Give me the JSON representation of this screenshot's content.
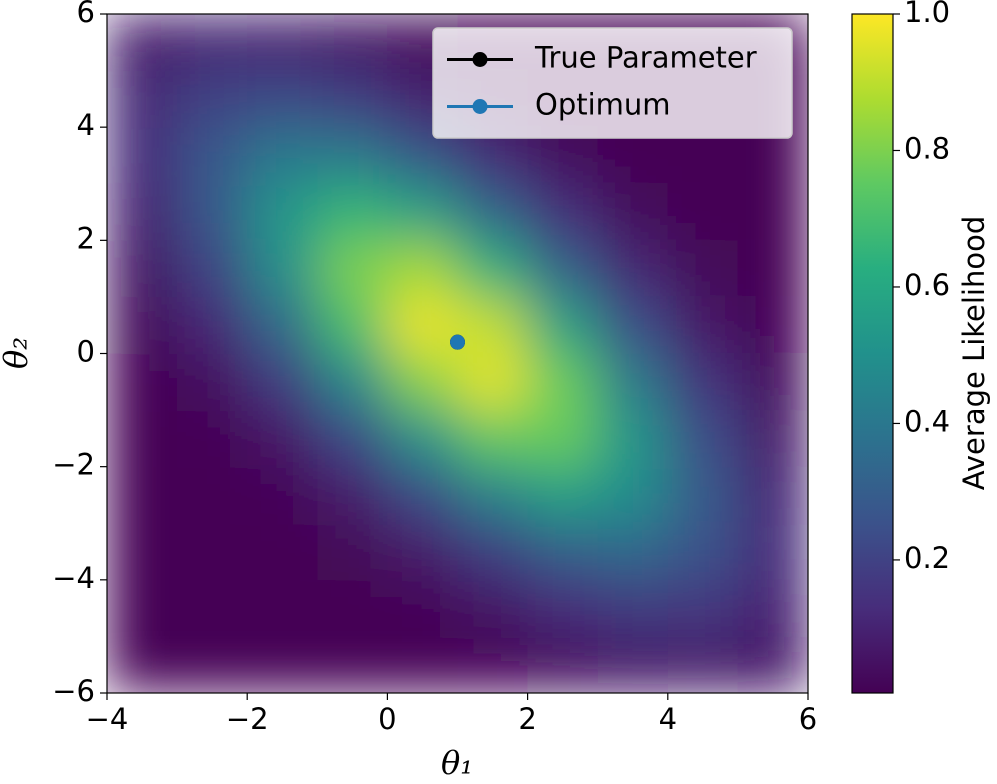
{
  "chart_data": {
    "type": "heatmap",
    "xlabel": "θ₁",
    "ylabel": "θ₂",
    "xlim": [
      -4,
      6
    ],
    "ylim": [
      -6,
      6
    ],
    "xticks": [
      {
        "value": -4,
        "label": "−4"
      },
      {
        "value": -2,
        "label": "−2"
      },
      0,
      2,
      4,
      6
    ],
    "yticks": [
      {
        "value": -6,
        "label": "−6"
      },
      {
        "value": -4,
        "label": "−4"
      },
      {
        "value": -2,
        "label": "−2"
      },
      0,
      2,
      4,
      6
    ],
    "x": [
      -3.5,
      -2.5,
      -1.5,
      -0.5,
      0.5,
      1.5,
      2.5,
      3.5,
      4.5,
      5.5
    ],
    "y": [
      5.5,
      4.5,
      3.5,
      2.5,
      1.5,
      0.5,
      -0.5,
      -1.5,
      -2.5,
      -3.5,
      -4.5,
      -5.5
    ],
    "z": [
      [
        0.081,
        0.109,
        0.099,
        0.061,
        0.026,
        0.007,
        0.001,
        0.0,
        0.0,
        0.0
      ],
      [
        0.118,
        0.202,
        0.234,
        0.183,
        0.097,
        0.035,
        0.009,
        0.001,
        0.0,
        0.0
      ],
      [
        0.127,
        0.277,
        0.407,
        0.405,
        0.273,
        0.124,
        0.038,
        0.008,
        0.001,
        0.0
      ],
      [
        0.102,
        0.28,
        0.523,
        0.659,
        0.563,
        0.326,
        0.128,
        0.034,
        0.006,
        0.0
      ],
      [
        0.06,
        0.21,
        0.497,
        0.795,
        0.862,
        0.632,
        0.314,
        0.106,
        0.024,
        0.004
      ],
      [
        0.026,
        0.116,
        0.349,
        0.708,
        0.973,
        0.906,
        0.571,
        0.244,
        0.07,
        0.014
      ],
      [
        0.008,
        0.048,
        0.181,
        0.466,
        0.814,
        0.961,
        0.769,
        0.416,
        0.153,
        0.038
      ],
      [
        0.002,
        0.014,
        0.069,
        0.227,
        0.503,
        0.754,
        0.765,
        0.526,
        0.244,
        0.077
      ],
      [
        0.0,
        0.003,
        0.02,
        0.082,
        0.23,
        0.436,
        0.562,
        0.49,
        0.289,
        0.116
      ],
      [
        0.0,
        0.001,
        0.004,
        0.022,
        0.078,
        0.187,
        0.306,
        0.338,
        0.253,
        0.128
      ],
      [
        0.0,
        0.0,
        0.001,
        0.004,
        0.019,
        0.059,
        0.123,
        0.172,
        0.164,
        0.105
      ],
      [
        0.0,
        0.0,
        0.0,
        0.001,
        0.004,
        0.014,
        0.037,
        0.065,
        0.078,
        0.064
      ]
    ],
    "colormap": "viridis",
    "clim": [
      0.005,
      1
    ],
    "colorbar_label": "Average Likelihood",
    "colorbar_ticks": [
      0.2,
      0.4,
      0.6,
      0.8,
      {
        "value": 1,
        "label": "1.0"
      }
    ],
    "series": [
      {
        "name": "True Parameter",
        "color": "#000000",
        "x": [
          1
        ],
        "y": [
          0.2
        ]
      },
      {
        "name": "Optimum",
        "color": "#1f77b4",
        "x": [
          1
        ],
        "y": [
          0.2
        ]
      }
    ],
    "legend": "upper right"
  }
}
